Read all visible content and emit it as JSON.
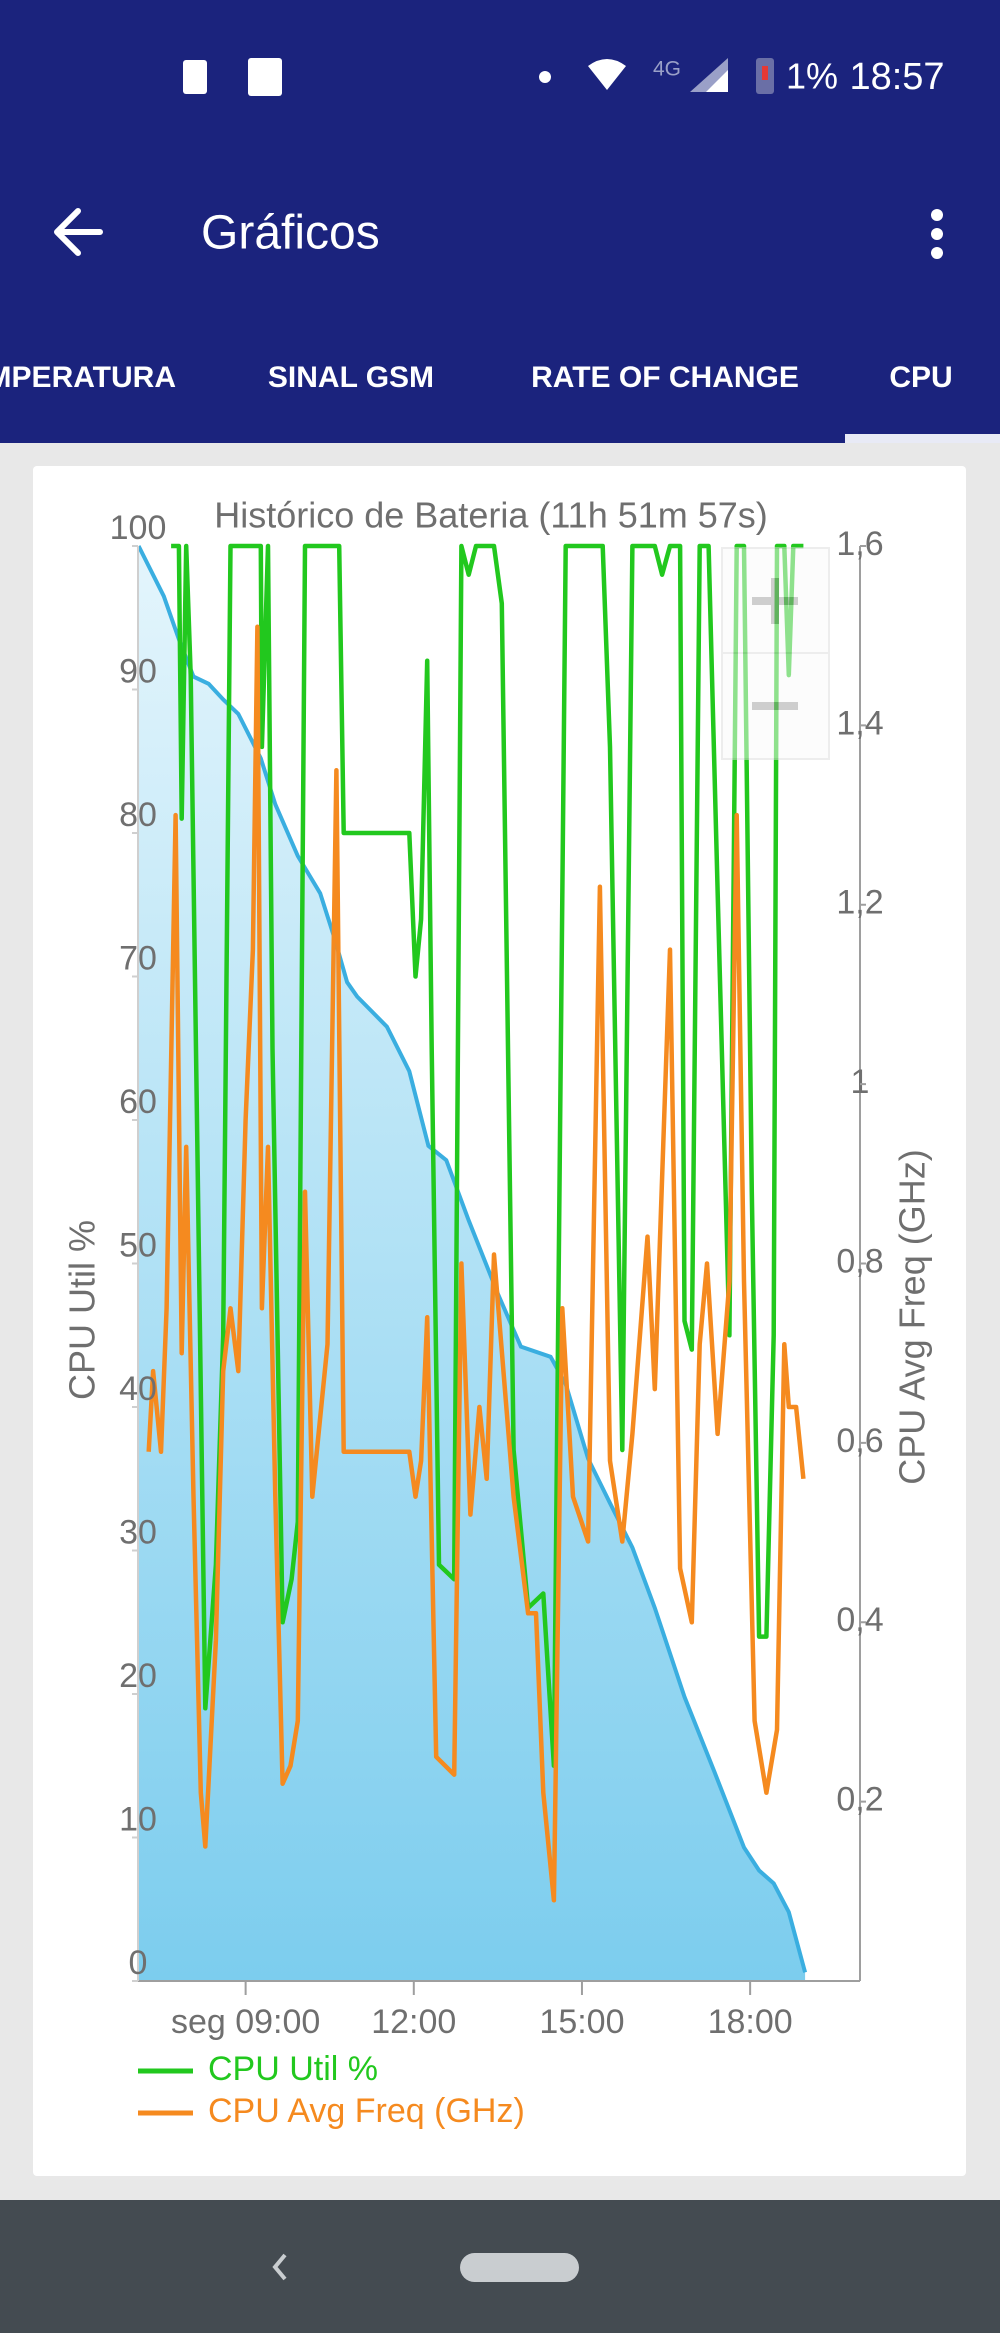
{
  "status_bar": {
    "network": "4G",
    "battery": "1%",
    "time": "18:57"
  },
  "app_bar": {
    "title": "Gráficos"
  },
  "tabs": [
    "TEMPERATURA",
    "SINAL GSM",
    "RATE OF CHANGE",
    "CPU"
  ],
  "chart_data": {
    "type": "line",
    "title": "Histórico de Bateria (11h 51m 57s)",
    "y_label": "CPU Util %",
    "y2_label": "CPU Avg Freq (GHz)",
    "xlim": [
      7.08,
      19.96
    ],
    "xticks": [
      {
        "value": 9,
        "label": "seg 09:00"
      },
      {
        "value": 12,
        "label": "12:00"
      },
      {
        "value": 15,
        "label": "15:00"
      },
      {
        "value": 18,
        "label": "18:00"
      }
    ],
    "ylim": [
      0,
      100
    ],
    "yticks": [
      0,
      10,
      20,
      30,
      40,
      50,
      60,
      70,
      80,
      90,
      100
    ],
    "y2lim": [
      0,
      1.6
    ],
    "y2ticks": [
      {
        "value": 0.2,
        "label": "0,2"
      },
      {
        "value": 0.4,
        "label": "0,4"
      },
      {
        "value": 0.6,
        "label": "0,6"
      },
      {
        "value": 0.8,
        "label": "0,8"
      },
      1,
      {
        "value": 1.2,
        "label": "1,2"
      },
      {
        "value": 1.4,
        "label": "1,4"
      },
      {
        "value": 1.6,
        "label": "1,6"
      }
    ],
    "grid": false,
    "legend": "bottom-left",
    "series": [
      {
        "type": "area",
        "color": "#3aaee0",
        "x": [
          7.09,
          7.27,
          7.54,
          7.81,
          8.07,
          8.34,
          8.6,
          8.87,
          9.27,
          9.53,
          9.93,
          10.33,
          10.59,
          10.81,
          10.99,
          11.52,
          11.92,
          12.26,
          12.58,
          12.98,
          13.51,
          13.91,
          14.44,
          14.71,
          15.11,
          15.5,
          15.9,
          16.3,
          16.83,
          17.36,
          17.89,
          18.16,
          18.42,
          18.69,
          18.98
        ],
        "values": [
          100,
          98.6,
          96.5,
          93.5,
          90.9,
          90.4,
          89.3,
          88.3,
          85.2,
          82,
          78.4,
          75.8,
          72.6,
          69.6,
          68.6,
          66.5,
          63.4,
          58.2,
          57.2,
          53,
          47.8,
          44.2,
          43.5,
          41.6,
          36.4,
          33.3,
          30.2,
          26,
          19.8,
          14.6,
          9.3,
          7.7,
          6.8,
          4.8,
          0.6
        ]
      },
      {
        "name": "CPU Util %",
        "color": "#22c81e",
        "x": [
          7.67,
          7.81,
          7.86,
          7.94,
          8.02,
          8.15,
          8.28,
          8.47,
          8.6,
          8.73,
          9.27,
          9.29,
          9.4,
          9.48,
          9.66,
          9.82,
          9.93,
          10.06,
          10.67,
          10.75,
          11.92,
          12.03,
          12.13,
          12.24,
          12.32,
          12.45,
          12.72,
          12.85,
          12.98,
          13.11,
          13.43,
          13.57,
          13.78,
          14.04,
          14.31,
          14.5,
          14.71,
          15.37,
          15.5,
          15.72,
          15.9,
          16.3,
          16.43,
          16.57,
          16.75,
          16.83,
          16.96,
          17.1,
          17.26,
          17.42,
          17.63,
          17.76,
          17.89,
          18.03,
          18.16,
          18.29,
          18.42,
          18.48,
          18.61,
          18.69,
          18.77,
          18.95
        ],
        "values": [
          100,
          100,
          81,
          100,
          91,
          55,
          19,
          29,
          45,
          100,
          100,
          86,
          100,
          65,
          25,
          28,
          32,
          100,
          100,
          80,
          80,
          70,
          74,
          92,
          65,
          29,
          28,
          100,
          98,
          100,
          100,
          96,
          37,
          26,
          27,
          15,
          100,
          100,
          86,
          37,
          100,
          100,
          98,
          100,
          100,
          46,
          44,
          100,
          100,
          76,
          45,
          100,
          100,
          55,
          24,
          24,
          45,
          100,
          100,
          91,
          100,
          100
        ]
      },
      {
        "name": "CPU Avg Freq (GHz)",
        "color": "#f58a1f",
        "axis": "y2",
        "x": [
          7.27,
          7.35,
          7.49,
          7.59,
          7.75,
          7.86,
          7.94,
          8.07,
          8.2,
          8.28,
          8.47,
          8.6,
          8.73,
          8.87,
          9.0,
          9.13,
          9.21,
          9.29,
          9.4,
          9.53,
          9.66,
          9.8,
          9.93,
          10.06,
          10.19,
          10.46,
          10.62,
          10.75,
          11.92,
          12.03,
          12.13,
          12.24,
          12.4,
          12.72,
          12.85,
          13.01,
          13.17,
          13.3,
          13.43,
          13.78,
          14.04,
          14.18,
          14.31,
          14.5,
          14.65,
          14.84,
          15.11,
          15.32,
          15.5,
          15.72,
          15.9,
          16.17,
          16.3,
          16.57,
          16.75,
          16.96,
          17.1,
          17.23,
          17.42,
          17.63,
          17.76,
          17.89,
          18.08,
          18.29,
          18.48,
          18.61,
          18.69,
          18.82,
          18.95
        ],
        "values": [
          0.59,
          0.68,
          0.59,
          0.75,
          1.3,
          0.7,
          0.93,
          0.54,
          0.21,
          0.15,
          0.38,
          0.68,
          0.75,
          0.68,
          0.96,
          1.15,
          1.51,
          0.75,
          0.93,
          0.54,
          0.22,
          0.24,
          0.29,
          0.88,
          0.54,
          0.71,
          1.35,
          0.59,
          0.59,
          0.54,
          0.58,
          0.74,
          0.25,
          0.23,
          0.8,
          0.52,
          0.64,
          0.56,
          0.81,
          0.54,
          0.41,
          0.41,
          0.21,
          0.09,
          0.75,
          0.54,
          0.49,
          1.22,
          0.58,
          0.49,
          0.61,
          0.83,
          0.66,
          1.15,
          0.46,
          0.4,
          0.71,
          0.8,
          0.61,
          0.78,
          1.3,
          0.78,
          0.29,
          0.21,
          0.28,
          0.71,
          0.64,
          0.64,
          0.56
        ]
      }
    ]
  }
}
